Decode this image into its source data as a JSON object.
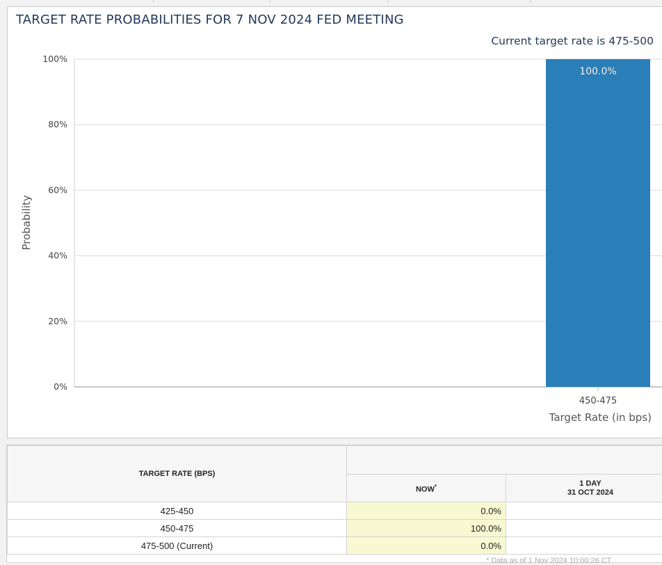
{
  "title": "TARGET RATE PROBABILITIES FOR 7 NOV 2024 FED MEETING",
  "current_rate_text": "Current target rate is 475-500",
  "chart_data": {
    "type": "bar",
    "title": "TARGET RATE PROBABILITIES FOR 7 NOV 2024 FED MEETING",
    "xlabel": "Target Rate (in bps)",
    "ylabel": "Probability",
    "categories": [
      "450-475"
    ],
    "values": [
      100
    ],
    "data_labels": [
      "100.0%"
    ],
    "yticks": [
      "0%",
      "20%",
      "40%",
      "60%",
      "80%",
      "100%"
    ],
    "ylim": [
      0,
      100
    ],
    "grid": true,
    "bar_color": "#2a7fb8"
  },
  "table": {
    "header_rate": "TARGET RATE (BPS)",
    "header_now": "NOW",
    "header_now_mark": "*",
    "header_day_1": "1 DAY",
    "header_day_2": "31 OCT 2024",
    "rows": [
      {
        "rate": "425-450",
        "now": "0.0%"
      },
      {
        "rate": "450-475",
        "now": "100.0%"
      },
      {
        "rate": "475-500 (Current)",
        "now": "0.0%"
      }
    ],
    "footnote": "* Data as of 1 Nov 2024 10:00:26 CT"
  }
}
